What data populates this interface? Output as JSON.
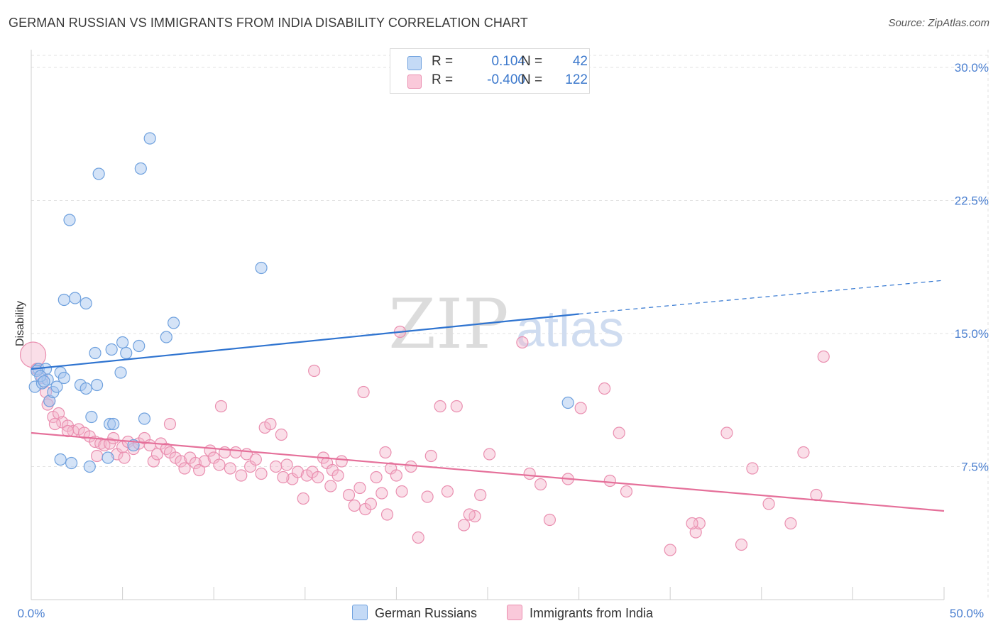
{
  "title": "GERMAN RUSSIAN VS IMMIGRANTS FROM INDIA DISABILITY CORRELATION CHART",
  "source": "Source: ZipAtlas.com",
  "watermark": {
    "zip": "ZIP",
    "atlas": "atlas"
  },
  "legend": {
    "rows": [
      {
        "r_label": "R =",
        "r_value": "0.104",
        "n_label": "N =",
        "n_value": "42"
      },
      {
        "r_label": "R =",
        "r_value": "-0.400",
        "n_label": "N =",
        "n_value": "122"
      }
    ]
  },
  "bottom_legend": {
    "series1": "German Russians",
    "series2": "Immigrants from India"
  },
  "colors": {
    "blue_fill": "#a9c8f0",
    "blue_stroke": "#6fa1de",
    "blue_line": "#2f74d0",
    "pink_fill": "#f5b6cb",
    "pink_stroke": "#ea8fb0",
    "pink_line": "#e5709a",
    "grid": "#e2e2e2",
    "tick_label": "#4a7fd0"
  },
  "chart_data": {
    "type": "scatter",
    "title": "GERMAN RUSSIAN VS IMMIGRANTS FROM INDIA DISABILITY CORRELATION CHART",
    "xlabel": "",
    "ylabel": "Disability",
    "xlim": [
      0,
      50
    ],
    "ylim": [
      0,
      31
    ],
    "x_tick_labels": [
      "0.0%",
      "50.0%"
    ],
    "y_ticks": [
      7.5,
      15.0,
      22.5,
      30.0
    ],
    "y_tick_labels": [
      "7.5%",
      "15.0%",
      "22.5%",
      "30.0%"
    ],
    "grid": true,
    "series": [
      {
        "name": "German Russians",
        "r": 0.104,
        "n": 42,
        "trend": {
          "x0": 0,
          "y0": 13.0,
          "x1": 30,
          "y1": 16.1,
          "dash_to_x": 50,
          "dash_to_y": 18.0
        },
        "points": [
          [
            0.2,
            12.0
          ],
          [
            0.4,
            13.0
          ],
          [
            0.6,
            12.2
          ],
          [
            0.8,
            13.0
          ],
          [
            0.9,
            12.4
          ],
          [
            1.0,
            11.2
          ],
          [
            1.2,
            11.7
          ],
          [
            1.4,
            12.0
          ],
          [
            1.6,
            12.8
          ],
          [
            1.8,
            12.5
          ],
          [
            1.6,
            7.9
          ],
          [
            2.2,
            7.7
          ],
          [
            1.8,
            16.9
          ],
          [
            2.4,
            17.0
          ],
          [
            3.0,
            16.7
          ],
          [
            2.1,
            21.4
          ],
          [
            3.7,
            24.0
          ],
          [
            6.0,
            24.3
          ],
          [
            6.5,
            26.0
          ],
          [
            2.7,
            12.1
          ],
          [
            3.0,
            11.9
          ],
          [
            3.6,
            12.1
          ],
          [
            3.5,
            13.9
          ],
          [
            4.4,
            14.1
          ],
          [
            5.0,
            14.5
          ],
          [
            5.2,
            13.9
          ],
          [
            5.9,
            14.3
          ],
          [
            4.9,
            12.8
          ],
          [
            3.3,
            10.3
          ],
          [
            4.3,
            9.9
          ],
          [
            4.5,
            9.9
          ],
          [
            4.2,
            8.0
          ],
          [
            5.6,
            8.7
          ],
          [
            6.2,
            10.2
          ],
          [
            7.4,
            14.8
          ],
          [
            7.8,
            15.6
          ],
          [
            12.6,
            18.7
          ],
          [
            29.4,
            11.1
          ],
          [
            3.2,
            7.5
          ],
          [
            0.3,
            12.9
          ],
          [
            0.5,
            12.6
          ],
          [
            0.7,
            12.3
          ]
        ]
      },
      {
        "name": "Immigrants from India",
        "r": -0.4,
        "n": 122,
        "trend": {
          "x0": 0,
          "y0": 9.4,
          "x1": 50,
          "y1": 5.0
        },
        "points": [
          [
            0.1,
            13.8
          ],
          [
            0.3,
            13.0
          ],
          [
            0.6,
            12.5
          ],
          [
            0.8,
            11.7
          ],
          [
            1.0,
            11.2
          ],
          [
            1.2,
            10.3
          ],
          [
            1.5,
            10.5
          ],
          [
            1.7,
            10.0
          ],
          [
            2.0,
            9.8
          ],
          [
            2.3,
            9.5
          ],
          [
            2.6,
            9.6
          ],
          [
            2.9,
            9.4
          ],
          [
            3.2,
            9.2
          ],
          [
            3.5,
            8.9
          ],
          [
            3.8,
            8.8
          ],
          [
            4.0,
            8.7
          ],
          [
            4.3,
            8.8
          ],
          [
            4.5,
            9.1
          ],
          [
            4.7,
            8.2
          ],
          [
            5.0,
            8.6
          ],
          [
            5.3,
            8.9
          ],
          [
            5.6,
            8.5
          ],
          [
            5.9,
            8.8
          ],
          [
            6.2,
            9.1
          ],
          [
            6.5,
            8.7
          ],
          [
            6.7,
            7.8
          ],
          [
            6.9,
            8.2
          ],
          [
            7.1,
            8.8
          ],
          [
            7.4,
            8.5
          ],
          [
            7.6,
            8.3
          ],
          [
            7.9,
            8.0
          ],
          [
            8.2,
            7.8
          ],
          [
            8.4,
            7.4
          ],
          [
            8.7,
            8.0
          ],
          [
            9.0,
            7.7
          ],
          [
            9.2,
            7.3
          ],
          [
            9.5,
            7.8
          ],
          [
            9.8,
            8.4
          ],
          [
            10.0,
            8.0
          ],
          [
            10.3,
            7.6
          ],
          [
            10.6,
            8.3
          ],
          [
            10.9,
            7.4
          ],
          [
            11.2,
            8.3
          ],
          [
            11.5,
            7.0
          ],
          [
            11.8,
            8.2
          ],
          [
            12.0,
            7.5
          ],
          [
            12.3,
            7.9
          ],
          [
            12.6,
            7.1
          ],
          [
            12.8,
            9.7
          ],
          [
            13.1,
            9.9
          ],
          [
            13.4,
            7.5
          ],
          [
            13.7,
            9.3
          ],
          [
            14.0,
            7.6
          ],
          [
            14.3,
            6.8
          ],
          [
            14.6,
            7.2
          ],
          [
            14.9,
            5.7
          ],
          [
            15.1,
            7.0
          ],
          [
            15.4,
            7.2
          ],
          [
            15.7,
            6.9
          ],
          [
            16.0,
            8.0
          ],
          [
            16.2,
            7.7
          ],
          [
            16.5,
            7.3
          ],
          [
            16.8,
            7.0
          ],
          [
            17.0,
            7.8
          ],
          [
            17.4,
            5.9
          ],
          [
            17.7,
            5.3
          ],
          [
            18.0,
            6.3
          ],
          [
            18.3,
            5.1
          ],
          [
            18.6,
            5.4
          ],
          [
            18.9,
            6.9
          ],
          [
            19.2,
            6.0
          ],
          [
            19.5,
            4.8
          ],
          [
            19.7,
            7.4
          ],
          [
            20.0,
            7.0
          ],
          [
            20.3,
            6.1
          ],
          [
            20.8,
            7.5
          ],
          [
            21.2,
            3.5
          ],
          [
            21.7,
            5.8
          ],
          [
            22.4,
            10.9
          ],
          [
            22.8,
            6.1
          ],
          [
            23.3,
            10.9
          ],
          [
            23.7,
            4.2
          ],
          [
            24.3,
            4.7
          ],
          [
            24.0,
            4.8
          ],
          [
            25.1,
            8.2
          ],
          [
            27.3,
            7.1
          ],
          [
            27.9,
            6.5
          ],
          [
            28.4,
            4.5
          ],
          [
            29.4,
            6.8
          ],
          [
            30.1,
            10.8
          ],
          [
            31.7,
            6.7
          ],
          [
            32.2,
            9.4
          ],
          [
            32.6,
            6.1
          ],
          [
            35.0,
            2.8
          ],
          [
            36.4,
            3.8
          ],
          [
            36.6,
            4.3
          ],
          [
            36.2,
            4.3
          ],
          [
            38.1,
            9.4
          ],
          [
            38.9,
            3.1
          ],
          [
            39.5,
            7.4
          ],
          [
            40.4,
            5.4
          ],
          [
            41.6,
            4.3
          ],
          [
            42.3,
            8.3
          ],
          [
            43.0,
            5.9
          ],
          [
            43.4,
            13.7
          ],
          [
            26.9,
            14.5
          ],
          [
            15.5,
            12.9
          ],
          [
            18.2,
            11.7
          ],
          [
            20.2,
            15.1
          ],
          [
            21.9,
            8.1
          ],
          [
            13.8,
            6.9
          ],
          [
            10.4,
            10.9
          ],
          [
            7.6,
            9.9
          ],
          [
            5.1,
            8.0
          ],
          [
            3.6,
            8.1
          ],
          [
            2.0,
            9.5
          ],
          [
            1.3,
            9.9
          ],
          [
            0.9,
            11.0
          ],
          [
            19.4,
            8.3
          ],
          [
            31.4,
            11.9
          ],
          [
            24.6,
            5.9
          ],
          [
            16.4,
            6.4
          ]
        ]
      }
    ]
  }
}
